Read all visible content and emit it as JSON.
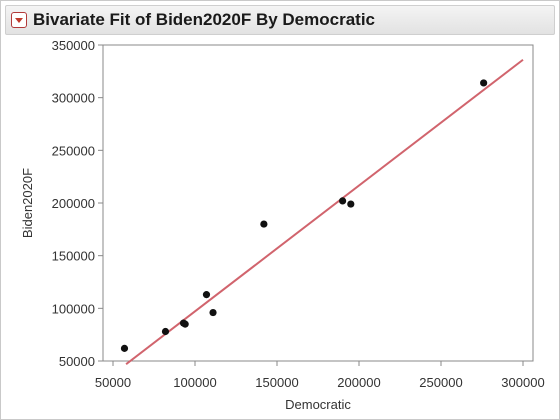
{
  "window": {
    "title": "Bivariate Fit of Biden2020F By Democratic",
    "disclosure_icon": "disclosure-triangle-icon"
  },
  "colors": {
    "fit_line": "#d1646d",
    "points": "#111111",
    "plot_border": "#888888",
    "header_bg": "#e9e9e9"
  },
  "chart_data": {
    "type": "scatter",
    "title": "Bivariate Fit of Biden2020F By Democratic",
    "xlabel": "Democratic",
    "ylabel": "Biden2020F",
    "xlim": [
      50000,
      300000
    ],
    "ylim": [
      50000,
      350000
    ],
    "x_ticks": [
      "50000",
      "100000",
      "150000",
      "200000",
      "250000",
      "300000"
    ],
    "y_ticks": [
      "50000",
      "100000",
      "150000",
      "200000",
      "250000",
      "300000",
      "350000"
    ],
    "grid": false,
    "points": [
      {
        "x": 57000,
        "y": 62000
      },
      {
        "x": 82000,
        "y": 78000
      },
      {
        "x": 93000,
        "y": 86000
      },
      {
        "x": 94000,
        "y": 85000
      },
      {
        "x": 107000,
        "y": 113000
      },
      {
        "x": 111000,
        "y": 96000
      },
      {
        "x": 142000,
        "y": 180000
      },
      {
        "x": 190000,
        "y": 202000
      },
      {
        "x": 195000,
        "y": 199000
      },
      {
        "x": 276000,
        "y": 314000
      }
    ],
    "fit_line": {
      "x1": 58000,
      "y1": 47000,
      "x2": 300000,
      "y2": 336000
    }
  }
}
